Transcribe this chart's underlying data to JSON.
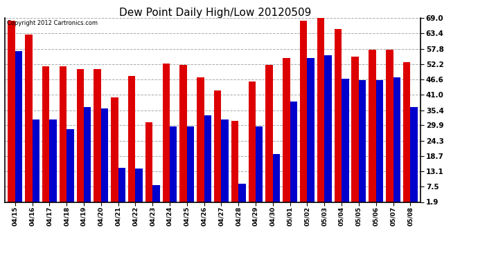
{
  "title": "Dew Point Daily High/Low 20120509",
  "copyright": "Copyright 2012 Cartronics.com",
  "dates": [
    "04/15",
    "04/16",
    "04/17",
    "04/18",
    "04/19",
    "04/20",
    "04/21",
    "04/22",
    "04/23",
    "04/24",
    "04/25",
    "04/26",
    "04/27",
    "04/28",
    "04/29",
    "04/30",
    "05/01",
    "05/02",
    "05/03",
    "05/04",
    "05/05",
    "05/06",
    "05/07",
    "05/08"
  ],
  "high": [
    68.0,
    63.0,
    51.5,
    51.5,
    50.5,
    50.5,
    40.0,
    48.0,
    31.0,
    52.5,
    52.0,
    47.5,
    42.5,
    31.5,
    46.0,
    52.0,
    54.5,
    68.0,
    70.0,
    65.0,
    55.0,
    57.5,
    57.5,
    53.0
  ],
  "low": [
    57.0,
    32.0,
    32.0,
    28.5,
    36.5,
    36.0,
    14.5,
    14.0,
    8.0,
    29.5,
    29.5,
    33.5,
    32.0,
    8.5,
    29.5,
    19.5,
    38.5,
    54.5,
    55.5,
    47.0,
    46.5,
    46.5,
    47.5,
    36.5
  ],
  "high_color": "#dd0000",
  "low_color": "#0000cc",
  "ylim_min": 1.9,
  "ylim_max": 69.0,
  "yticks": [
    1.9,
    7.5,
    13.1,
    18.7,
    24.3,
    29.9,
    35.4,
    41.0,
    46.6,
    52.2,
    57.8,
    63.4,
    69.0
  ],
  "background_color": "#ffffff",
  "plot_bg_color": "#ffffff",
  "grid_color": "#aaaaaa",
  "bar_width": 0.42,
  "title_fontsize": 11,
  "tick_fontsize": 6.5,
  "ytick_fontsize": 7.5,
  "fig_width": 6.9,
  "fig_height": 3.75,
  "dpi": 100
}
